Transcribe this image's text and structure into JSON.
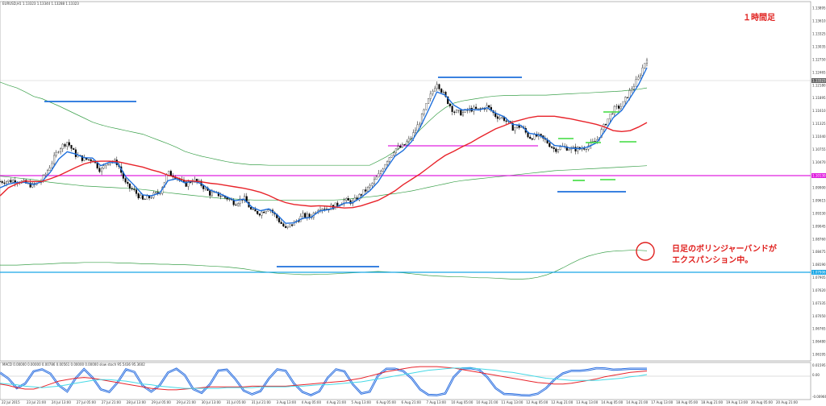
{
  "main": {
    "symbol_line": "EURUSD,H1 1.13323 1.13344 1.13288 1.13323",
    "timeframe_note": "１時間足",
    "annotation_line1": "日足のボリンジャーバンドが",
    "annotation_line2": "エクスパンション中。",
    "current_price_label": "1.13323",
    "support_label": "1.10130",
    "lower_band_label": "1.07906",
    "price_ticks": [
      "1.13895",
      "1.13610",
      "1.13325",
      "1.13035",
      "1.12750",
      "1.12465",
      "1.12180",
      "1.11895",
      "1.11610",
      "1.11325",
      "1.11040",
      "1.10755",
      "1.10470",
      "1.10185",
      "1.09900",
      "1.09615",
      "1.09330",
      "1.09045",
      "1.08760",
      "1.08475",
      "1.08190",
      "1.07905",
      "1.07620",
      "1.07335",
      "1.07050",
      "1.06765",
      "1.06480",
      "1.06195"
    ]
  },
  "macd": {
    "header": "MACD 0.00000 0.00000 0.00786 0.00561 0.00000 0.00000  slow stoch 95.5436 95.3602",
    "ticks": [
      "0.015951",
      "0.00",
      "-0.009663"
    ]
  },
  "time_ticks": [
    "22 Jul 2015",
    "23 Jul 21:00",
    "24 Jul 13:00",
    "27 Jul 05:00",
    "27 Jul 21:00",
    "28 Jul 13:00",
    "29 Jul 05:00",
    "29 Jul 21:00",
    "30 Jul 13:00",
    "31 Jul 05:00",
    "31 Jul 21:00",
    "3 Aug 13:00",
    "4 Aug 05:00",
    "4 Aug 21:00",
    "5 Aug 13:00",
    "6 Aug 05:00",
    "6 Aug 21:00",
    "7 Aug 13:00",
    "10 Aug 05:00",
    "10 Aug 21:00",
    "11 Aug 13:00",
    "12 Aug 05:00",
    "12 Aug 21:00",
    "13 Aug 13:00",
    "14 Aug 05:00",
    "14 Aug 21:00",
    "17 Aug 13:00",
    "18 Aug 05:00",
    "18 Aug 21:00",
    "19 Aug 13:00",
    "20 Aug 05:00",
    "20 Aug 21:00"
  ],
  "colors": {
    "candle": "#000000",
    "ma_blue": "#1e6fdc",
    "ma_red": "#e8232a",
    "band_green": "#3aa04a",
    "magenta": "#e020e0",
    "blue_mark": "#1e6fdc",
    "lime_mark": "#3ddc3d",
    "cyan_line": "#19a7e6",
    "note_red": "#e0201e",
    "osc_blue": "#2b6fe0",
    "osc_red": "#e8232a",
    "osc_cyan": "#46d9e6"
  },
  "chart_data": {
    "type": "line",
    "series": [
      {
        "key": "price",
        "values": [
          1.1004,
          1.1005,
          1.1006,
          1.1,
          1.0994,
          1.1007,
          1.104,
          1.1077,
          1.1092,
          1.1063,
          1.1053,
          1.1053,
          1.1028,
          1.1051,
          1.1045,
          1.0996,
          1.0982,
          1.0962,
          1.0971,
          1.098,
          1.1023,
          1.1015,
          1.0996,
          1.1008,
          1.0996,
          1.0977,
          1.0975,
          1.0967,
          1.0956,
          1.0968,
          1.0937,
          1.0934,
          1.0946,
          1.0922,
          1.0898,
          1.0912,
          1.0928,
          1.0926,
          1.0947,
          1.0944,
          1.0951,
          1.0962,
          1.0958,
          1.0976,
          1.0992,
          1.1016,
          1.105,
          1.1076,
          1.1082,
          1.1103,
          1.1138,
          1.1185,
          1.1225,
          1.1191,
          1.1159,
          1.1156,
          1.1165,
          1.1163,
          1.1171,
          1.115,
          1.1143,
          1.1123,
          1.1127,
          1.1102,
          1.1105,
          1.1094,
          1.1075,
          1.1081,
          1.1076,
          1.1076,
          1.1083,
          1.1095,
          1.1131,
          1.1164,
          1.1172,
          1.1205,
          1.1234,
          1.128
        ]
      },
      {
        "key": "sma20",
        "values": [
          1.0972,
          1.099,
          1.0999,
          1.1005,
          1.1004,
          1.1004,
          1.101,
          1.1017,
          1.1026,
          1.1035,
          1.1043,
          1.1048,
          1.1049,
          1.1049,
          1.1048,
          1.1044,
          1.104,
          1.1036,
          1.103,
          1.1025,
          1.1018,
          1.1013,
          1.1006,
          1.1005,
          1.1003,
          1.1,
          1.0998,
          1.0995,
          1.0992,
          1.0989,
          1.0985,
          1.098,
          1.0973,
          1.0964,
          1.0957,
          1.0953,
          1.0951,
          1.0949,
          1.095,
          1.0949,
          1.0947,
          1.0945,
          1.0946,
          1.095,
          1.0956,
          1.0962,
          1.0972,
          1.0983,
          1.0997,
          1.1009,
          1.1021,
          1.1035,
          1.1049,
          1.1062,
          1.1071,
          1.1081,
          1.109,
          1.1101,
          1.1111,
          1.1121,
          1.1128,
          1.1136,
          1.1141,
          1.1146,
          1.1149,
          1.1149,
          1.1149,
          1.1146,
          1.1143,
          1.1139,
          1.1135,
          1.1131,
          1.1125,
          1.1117,
          1.1115,
          1.1117,
          1.1125,
          1.1135
        ]
      },
      {
        "key": "ema",
        "values": [
          1.099,
          1.0998,
          1.1002,
          1.1002,
          1.0997,
          1.1004,
          1.1025,
          1.1054,
          1.107,
          1.1065,
          1.1057,
          1.1056,
          1.1039,
          1.1047,
          1.1045,
          1.1014,
          1.0995,
          1.0974,
          1.0972,
          1.0978,
          1.1006,
          1.101,
          1.1001,
          1.1005,
          1.0999,
          1.0985,
          1.0978,
          1.097,
          1.0961,
          1.0965,
          1.0947,
          1.0939,
          1.0943,
          1.093,
          1.0911,
          1.0912,
          1.0922,
          1.0924,
          1.0938,
          1.0941,
          1.0947,
          1.0956,
          1.0957,
          1.0969,
          1.0983,
          1.1003,
          1.1033,
          1.106,
          1.1073,
          1.1093,
          1.1124,
          1.1163,
          1.1203,
          1.1196,
          1.1174,
          1.1163,
          1.1164,
          1.1163,
          1.1168,
          1.1156,
          1.1148,
          1.1131,
          1.1129,
          1.1111,
          1.1108,
          1.1099,
          1.1084,
          1.1082,
          1.1078,
          1.1077,
          1.1081,
          1.109,
          1.1116,
          1.1146,
          1.1162,
          1.119,
          1.1219,
          1.1257
        ]
      },
      {
        "key": "bb_upper",
        "values": [
          1.1225,
          1.1218,
          1.1212,
          1.1203,
          1.1193,
          1.1188,
          1.118,
          1.1172,
          1.1163,
          1.1154,
          1.1145,
          1.1136,
          1.113,
          1.1125,
          1.1121,
          1.1117,
          1.1113,
          1.1109,
          1.1102,
          1.1095,
          1.1088,
          1.108,
          1.1071,
          1.1065,
          1.106,
          1.1056,
          1.1052,
          1.1048,
          1.1045,
          1.1043,
          1.1041,
          1.1041,
          1.104,
          1.104,
          1.104,
          1.104,
          1.104,
          1.104,
          1.104,
          1.104,
          1.104,
          1.104,
          1.104,
          1.104,
          1.104,
          1.1049,
          1.1059,
          1.1071,
          1.1083,
          1.1099,
          1.1119,
          1.1137,
          1.1154,
          1.1168,
          1.1178,
          1.1183,
          1.1186,
          1.1189,
          1.1192,
          1.1194,
          1.1195,
          1.1195,
          1.1196,
          1.1196,
          1.1196,
          1.1196,
          1.1197,
          1.1198,
          1.1199,
          1.12,
          1.1201,
          1.1202,
          1.1203,
          1.1204,
          1.1205,
          1.1207,
          1.1209,
          1.1212
        ]
      },
      {
        "key": "bb_mid",
        "values": [
          1.1016,
          1.1014,
          1.1012,
          1.101,
          1.1008,
          1.1005,
          1.1002,
          1.1,
          1.0998,
          1.0996,
          1.0994,
          1.0993,
          1.0992,
          1.0991,
          1.099,
          1.0989,
          1.0988,
          1.0986,
          1.0984,
          1.0981,
          1.0979,
          1.0977,
          1.0975,
          1.0973,
          1.0971,
          1.0969,
          1.0967,
          1.0966,
          1.0965,
          1.0964,
          1.0963,
          1.0962,
          1.0962,
          1.0962,
          1.0962,
          1.0962,
          1.0962,
          1.0962,
          1.0962,
          1.0962,
          1.0963,
          1.0964,
          1.0966,
          1.0968,
          1.097,
          1.0972,
          1.0975,
          1.0977,
          1.098,
          1.0983,
          1.0987,
          1.0991,
          1.0995,
          1.0999,
          1.1003,
          1.1006,
          1.1008,
          1.101,
          1.1012,
          1.1014,
          1.1016,
          1.1018,
          1.102,
          1.1022,
          1.1024,
          1.1026,
          1.1028,
          1.1029,
          1.103,
          1.1031,
          1.1032,
          1.1033,
          1.1034,
          1.1035,
          1.1036,
          1.1037,
          1.1038,
          1.1039
        ]
      },
      {
        "key": "bb_lower",
        "values": [
          1.0818,
          1.0818,
          1.0818,
          1.0819,
          1.082,
          1.082,
          1.0821,
          1.0822,
          1.0823,
          1.0823,
          1.0824,
          1.0824,
          1.0824,
          1.0824,
          1.0823,
          1.0823,
          1.0822,
          1.0821,
          1.0821,
          1.082,
          1.082,
          1.0819,
          1.0819,
          1.0818,
          1.0817,
          1.0816,
          1.0815,
          1.0814,
          1.0812,
          1.081,
          1.0807,
          1.0804,
          1.0802,
          1.08,
          1.0799,
          1.0798,
          1.0797,
          1.0797,
          1.0798,
          1.0798,
          1.0799,
          1.08,
          1.0801,
          1.0802,
          1.0803,
          1.0804,
          1.0803,
          1.0802,
          1.0801,
          1.0799,
          1.0797,
          1.0795,
          1.0794,
          1.0793,
          1.0792,
          1.0792,
          1.0791,
          1.079,
          1.079,
          1.0789,
          1.0788,
          1.0787,
          1.0787,
          1.0788,
          1.0791,
          1.0796,
          1.0803,
          1.0812,
          1.0822,
          1.0831,
          1.0838,
          1.0843,
          1.0847,
          1.0849,
          1.085,
          1.0851,
          1.0851,
          1.085
        ]
      },
      {
        "key": "stoch_main",
        "values": [
          82,
          61,
          28,
          44,
          86,
          93,
          78,
          38,
          17,
          62,
          94,
          65,
          24,
          15,
          48,
          93,
          84,
          36,
          16,
          38,
          82,
          95,
          73,
          25,
          12,
          42,
          89,
          92,
          60,
          20,
          7,
          18,
          61,
          93,
          88,
          44,
          15,
          4,
          17,
          64,
          93,
          86,
          41,
          10,
          16,
          72,
          95,
          95,
          87,
          62,
          24,
          5,
          4,
          10,
          66,
          96,
          97,
          92,
          66,
          28,
          8,
          7,
          4,
          3,
          9,
          28,
          58,
          79,
          88,
          88,
          91,
          97,
          96,
          92,
          93,
          95,
          95,
          95
        ]
      },
      {
        "key": "stoch_signal",
        "values": [
          70,
          68,
          41,
          43,
          71,
          91,
          82,
          46,
          23,
          50,
          88,
          72,
          30,
          16,
          39,
          86,
          87,
          45,
          19,
          31,
          75,
          93,
          81,
          33,
          15,
          34,
          81,
          92,
          68,
          27,
          10,
          14,
          50,
          88,
          90,
          53,
          20,
          6,
          12,
          53,
          89,
          88,
          51,
          15,
          13,
          58,
          91,
          96,
          89,
          70,
          32,
          9,
          4,
          7,
          54,
          90,
          97,
          94,
          73,
          35,
          12,
          7,
          5,
          3,
          7,
          23,
          52,
          75,
          87,
          88,
          90,
          96,
          97,
          93,
          93,
          95,
          95,
          95
        ]
      },
      {
        "key": "macd_line",
        "values": [
          -3,
          -5,
          -8,
          -10,
          -10,
          -7,
          -3,
          1,
          3,
          5,
          6,
          5,
          3,
          1,
          -1,
          -3,
          -5,
          -7,
          -9,
          -10,
          -11,
          -11,
          -10,
          -9,
          -8,
          -7,
          -7,
          -7,
          -7,
          -7,
          -6,
          -6,
          -6,
          -6,
          -6,
          -5,
          -4,
          -3,
          -2,
          -1,
          0,
          1,
          3,
          5,
          8,
          11,
          14,
          16,
          18,
          20,
          21,
          21,
          21,
          20,
          19,
          17,
          15,
          13,
          11,
          9,
          7,
          5,
          3,
          1,
          -1,
          -2,
          -3,
          -3,
          -2,
          0,
          2,
          4,
          7,
          9,
          11,
          13,
          14,
          15
        ]
      },
      {
        "key": "macd_signal",
        "values": [
          -2,
          -3,
          -4,
          -6,
          -7,
          -8,
          -7,
          -6,
          -4,
          -2,
          0,
          2,
          3,
          3,
          2,
          1,
          -1,
          -3,
          -4,
          -6,
          -7,
          -8,
          -9,
          -9,
          -9,
          -9,
          -9,
          -8,
          -8,
          -8,
          -8,
          -7,
          -7,
          -7,
          -7,
          -6,
          -6,
          -5,
          -4,
          -4,
          -3,
          -2,
          -1,
          0,
          2,
          4,
          6,
          8,
          10,
          12,
          14,
          16,
          17,
          18,
          19,
          19,
          19,
          18,
          17,
          16,
          14,
          13,
          11,
          9,
          7,
          5,
          4,
          3,
          2,
          2,
          2,
          2,
          3,
          4,
          5,
          7,
          8,
          10
        ]
      }
    ],
    "ylim": [
      1.06195,
      1.13895
    ],
    "macd_ylim": [
      -0.009663,
      0.015951
    ]
  }
}
